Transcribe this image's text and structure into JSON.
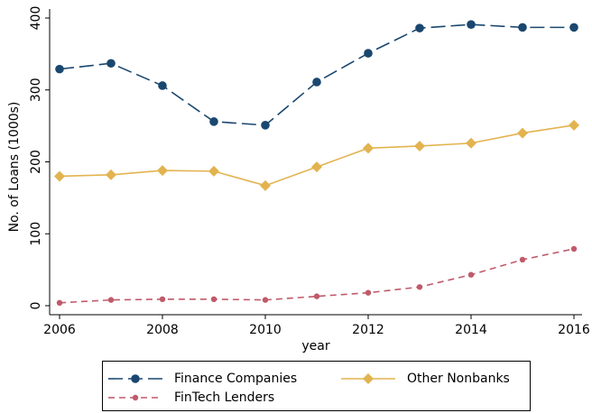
{
  "chart_data": {
    "type": "line",
    "x_label": "year",
    "y_label": "No. of Loans (1000s)",
    "x": [
      2006,
      2007,
      2008,
      2009,
      2010,
      2011,
      2012,
      2013,
      2014,
      2015,
      2016
    ],
    "series": [
      {
        "name": "Finance Companies",
        "color": "#1a476f",
        "line_style": "longdash",
        "marker": "circle",
        "values": [
          329,
          337,
          306,
          256,
          251,
          311,
          351,
          386,
          391,
          387,
          387
        ]
      },
      {
        "name": "Other Nonbanks",
        "color": "#e2b34f",
        "line_style": "solid",
        "marker": "diamond",
        "values": [
          180,
          182,
          188,
          187,
          167,
          193,
          219,
          222,
          226,
          240,
          251
        ]
      },
      {
        "name": "FinTech Lenders",
        "color": "#c05a6a",
        "line_style": "dash",
        "marker": "smallcircle",
        "values": [
          4,
          8,
          9,
          9,
          8,
          13,
          18,
          26,
          43,
          64,
          79
        ]
      }
    ],
    "xlim": [
      2006,
      2016
    ],
    "xticks": [
      2006,
      2008,
      2010,
      2012,
      2014,
      2016
    ],
    "ylim": [
      0,
      400
    ],
    "yticks": [
      0,
      100,
      200,
      300,
      400
    ],
    "grid": false,
    "legend_position": "bottom"
  }
}
